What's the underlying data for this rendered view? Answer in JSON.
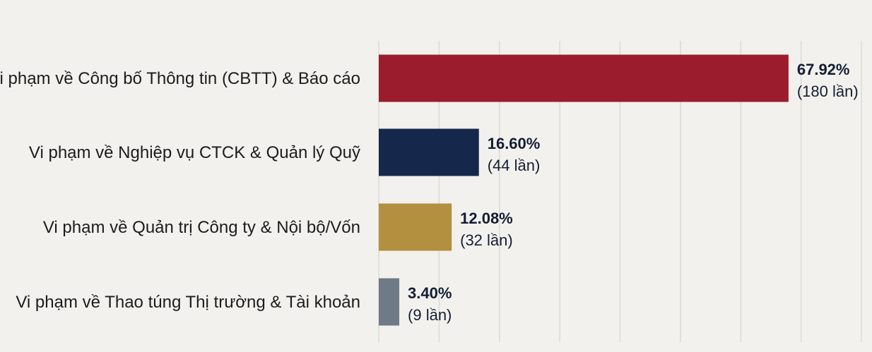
{
  "chart_data": {
    "type": "bar",
    "orientation": "horizontal",
    "categories": [
      "Vi phạm về Công bố Thông tin (CBTT) & Báo cáo",
      "Vi phạm về Nghiệp vụ CTCK & Quản lý Quỹ",
      "Vi phạm về Quản trị Công ty & Nội bộ/Vốn",
      "Vi phạm về Thao túng Thị trường & Tài khoản"
    ],
    "values": [
      67.92,
      16.6,
      12.08,
      3.4
    ],
    "value_labels": [
      "67.92%",
      "16.60%",
      "12.08%",
      "3.40%"
    ],
    "count_labels": [
      "(180 lần)",
      "(44 lần)",
      "(32 lần)",
      "(9 lần)"
    ],
    "colors": [
      "#9b1c2c",
      "#15284b",
      "#b38f40",
      "#6f7a87"
    ],
    "xlim": [
      0,
      80
    ],
    "grid": true,
    "title": "",
    "xlabel": "",
    "ylabel": ""
  }
}
